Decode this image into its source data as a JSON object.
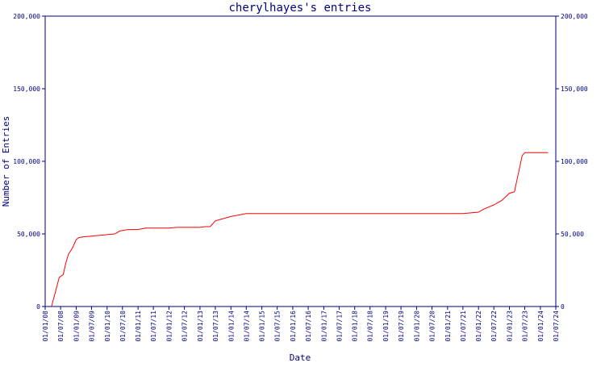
{
  "chart_data": {
    "type": "line",
    "title": "cherylhayes's entries",
    "xlabel": "Date",
    "ylabel": "Number of Entries",
    "ylim": [
      0,
      200000
    ],
    "grid": false,
    "colors": {
      "axis": "#000080",
      "series": "#ff0000"
    },
    "y_ticks": [
      0,
      50000,
      100000,
      150000,
      200000
    ],
    "y_tick_labels": [
      "0",
      "50,000",
      "100,000",
      "150,000",
      "200,000"
    ],
    "x_ticks": [
      "2008-01-01",
      "2008-07-01",
      "2009-01-01",
      "2009-07-01",
      "2010-01-01",
      "2010-07-01",
      "2011-01-01",
      "2011-07-01",
      "2012-01-01",
      "2012-07-01",
      "2013-01-01",
      "2013-07-01",
      "2014-01-01",
      "2014-07-01",
      "2015-01-01",
      "2015-07-01",
      "2016-01-01",
      "2016-07-01",
      "2017-01-01",
      "2017-07-01",
      "2018-01-01",
      "2018-07-01",
      "2019-01-01",
      "2019-07-01",
      "2020-01-01",
      "2020-07-01",
      "2021-01-01",
      "2021-07-01",
      "2022-01-01",
      "2022-07-01",
      "2023-01-01",
      "2023-07-01",
      "2024-01-01",
      "2024-07-01"
    ],
    "x_tick_labels": [
      "01/01/08",
      "01/07/08",
      "01/01/09",
      "01/07/09",
      "01/01/10",
      "01/07/10",
      "01/01/11",
      "01/07/11",
      "01/01/12",
      "01/07/12",
      "01/01/13",
      "01/07/13",
      "01/01/14",
      "01/07/14",
      "01/01/15",
      "01/07/15",
      "01/01/16",
      "01/07/16",
      "01/01/17",
      "01/07/17",
      "01/01/18",
      "01/07/18",
      "01/01/19",
      "01/07/19",
      "01/01/20",
      "01/07/20",
      "01/01/21",
      "01/07/21",
      "01/01/22",
      "01/07/22",
      "01/01/23",
      "01/07/23",
      "01/01/24",
      "01/07/24"
    ],
    "xlim": [
      "2008-01-01",
      "2024-07-01"
    ],
    "series": [
      {
        "x": [
          "2008-03-15",
          "2008-05-01",
          "2008-06-15",
          "2008-08-01",
          "2008-09-01",
          "2008-10-01",
          "2008-11-15",
          "2009-01-01",
          "2009-02-01",
          "2009-04-01",
          "2009-07-01",
          "2010-01-01",
          "2010-04-01",
          "2010-06-01",
          "2010-09-01",
          "2011-01-01",
          "2011-04-01",
          "2012-01-01",
          "2012-04-01",
          "2013-01-01",
          "2013-03-01",
          "2013-05-01",
          "2013-06-01",
          "2013-07-01",
          "2013-09-01",
          "2014-01-01",
          "2014-04-01",
          "2014-07-01",
          "2015-01-01",
          "2016-01-01",
          "2017-01-01",
          "2018-01-01",
          "2019-01-01",
          "2020-01-01",
          "2021-01-01",
          "2021-07-01",
          "2022-01-01",
          "2022-03-01",
          "2022-07-01",
          "2022-10-01",
          "2023-01-01",
          "2023-03-01",
          "2023-06-01",
          "2023-07-01",
          "2024-01-01",
          "2024-04-01"
        ],
        "y": [
          0,
          10000,
          20000,
          22000,
          30000,
          36000,
          40000,
          46000,
          47500,
          48000,
          48500,
          49500,
          50000,
          52000,
          53000,
          53000,
          54000,
          54000,
          54500,
          54500,
          55000,
          55000,
          57000,
          59000,
          60000,
          62000,
          63000,
          64000,
          64000,
          64000,
          64000,
          64000,
          64000,
          64000,
          64000,
          64000,
          65000,
          67000,
          70000,
          73000,
          78000,
          79000,
          104000,
          106000,
          106000,
          106000
        ]
      }
    ]
  }
}
